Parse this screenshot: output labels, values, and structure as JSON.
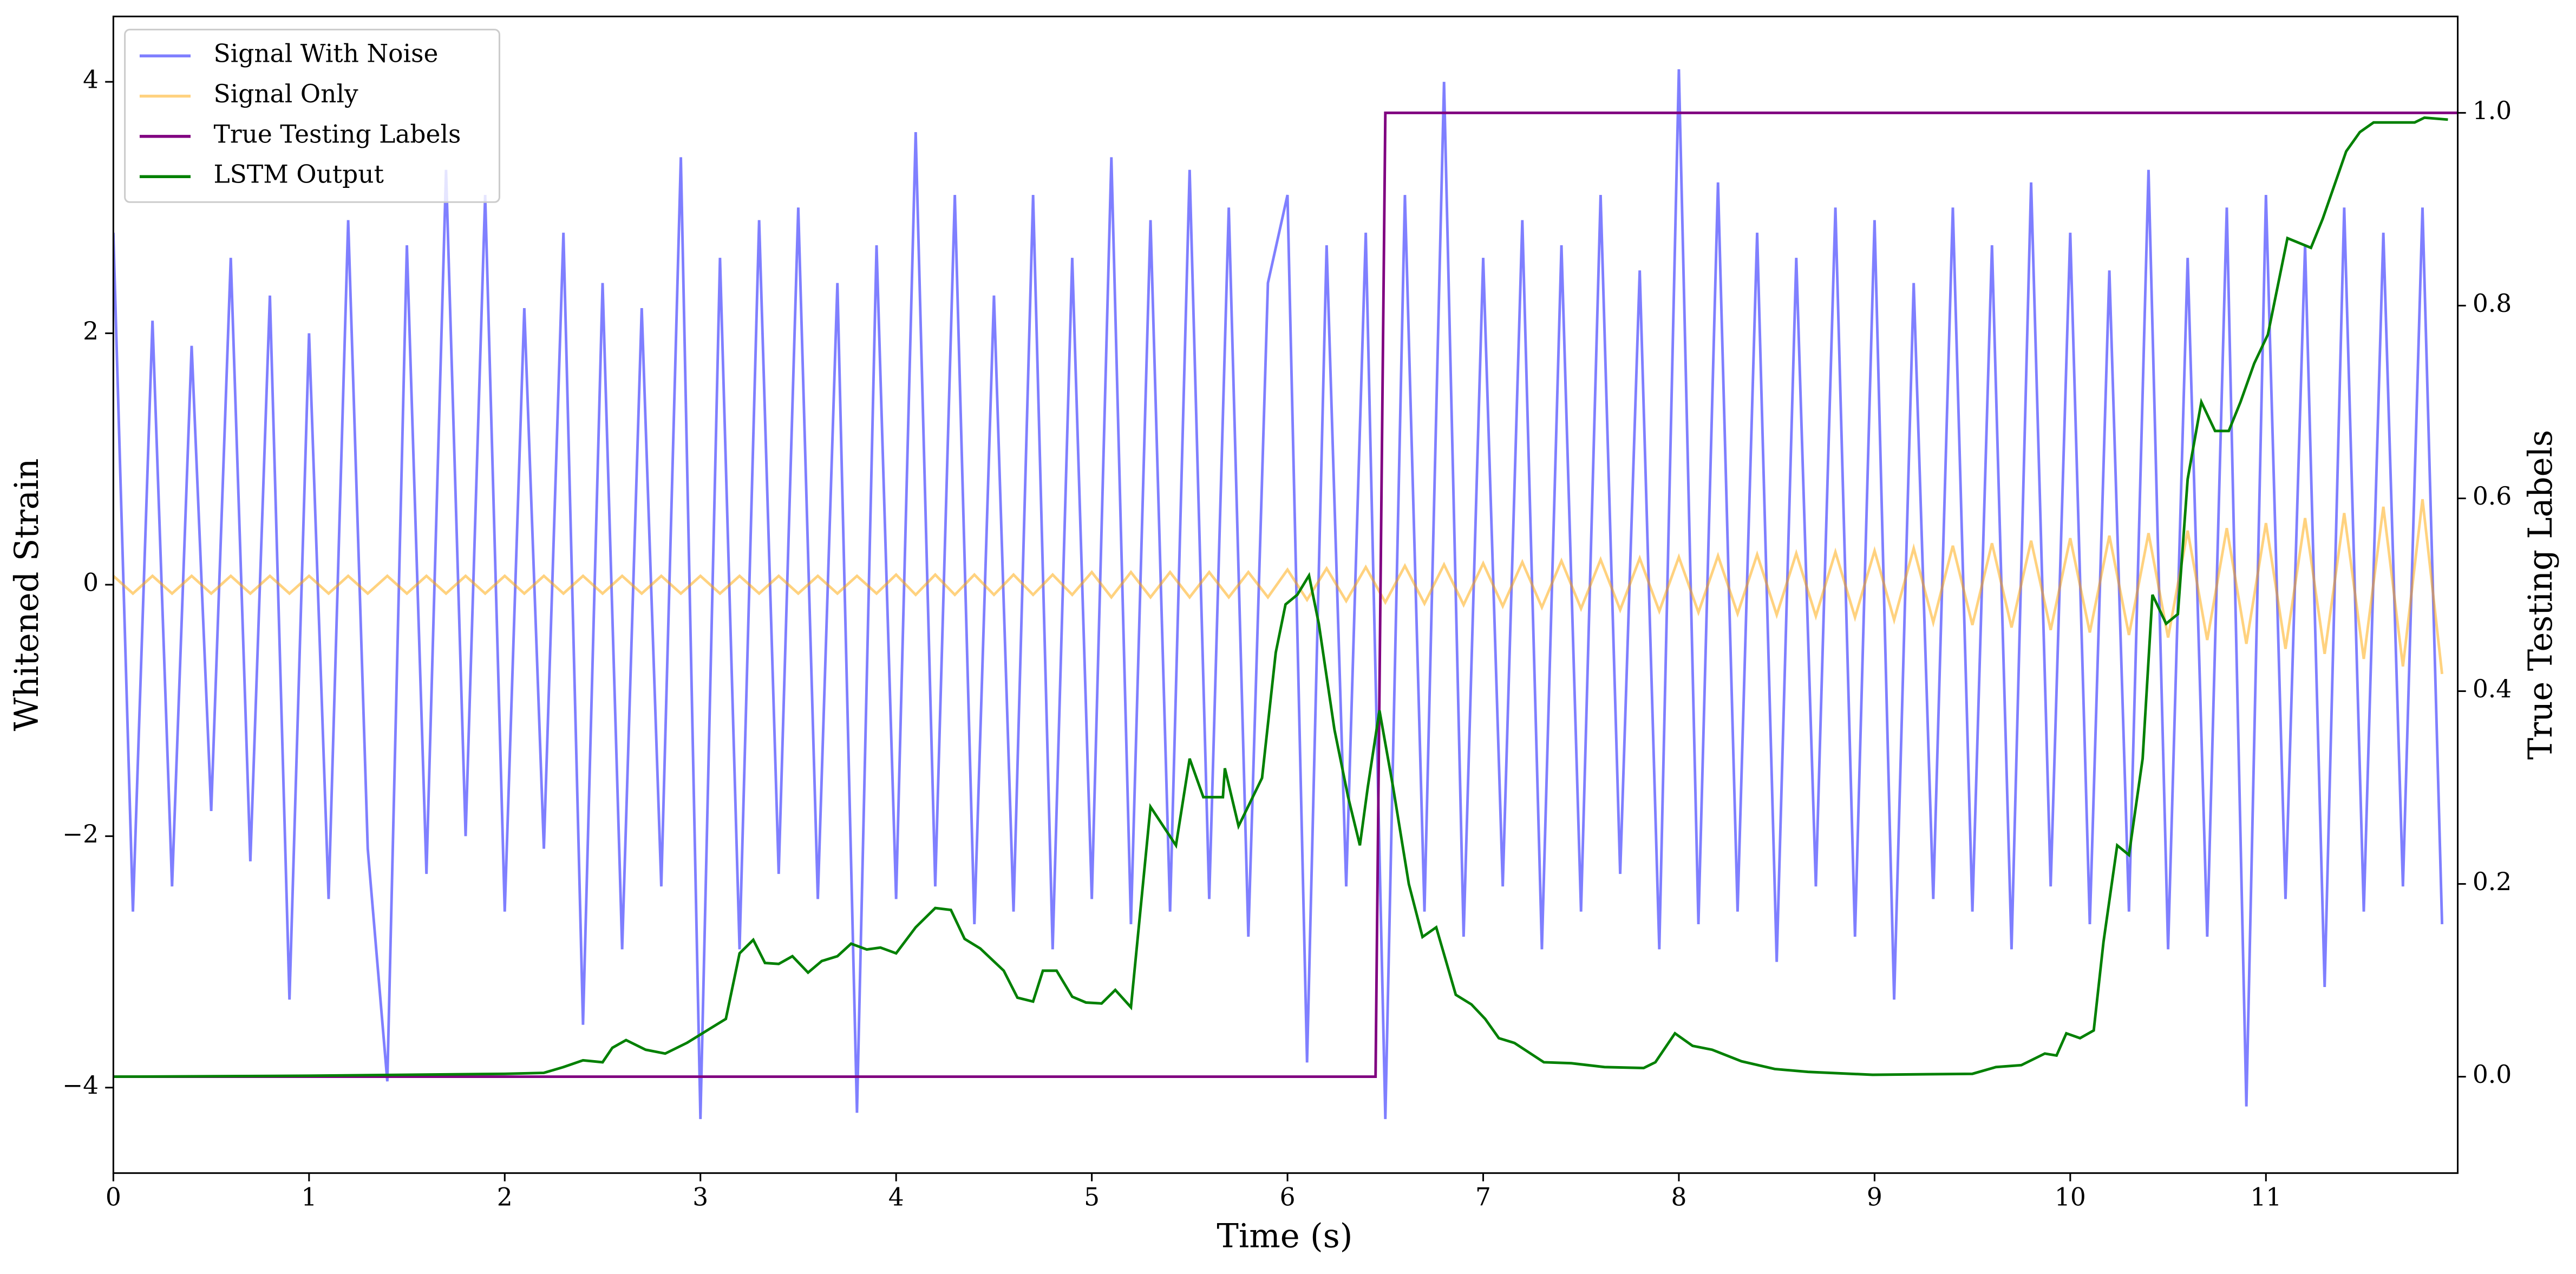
{
  "chart_data": {
    "type": "line",
    "xlabel": "Time (s)",
    "ylabel": "Whitened Strain",
    "y2label": "True Testing Labels",
    "xlim": [
      0,
      11.98
    ],
    "ylim": [
      -4.68,
      4.52
    ],
    "y2lim": [
      -0.1,
      1.1
    ],
    "xticks": [
      0,
      1,
      2,
      3,
      4,
      5,
      6,
      7,
      8,
      9,
      10,
      11
    ],
    "yticks": [
      {
        "value": -4,
        "label": "−4"
      },
      {
        "value": -2,
        "label": "−2"
      },
      0,
      2,
      4
    ],
    "y2ticks": [
      {
        "value": 0,
        "label": "0.0"
      },
      0.2,
      0.4,
      0.6,
      0.8,
      {
        "value": 1,
        "label": "1.0"
      }
    ],
    "legend": "upper left",
    "x": [
      0,
      0.1,
      0.2,
      0.3,
      0.4,
      0.5,
      0.6,
      0.7,
      0.8,
      0.9,
      1,
      1.1,
      1.2,
      1.3,
      1.4,
      1.5,
      1.6,
      1.7,
      1.8,
      1.9,
      2,
      2.1,
      2.2,
      2.3,
      2.4,
      2.5,
      2.6,
      2.7,
      2.8,
      2.9,
      3,
      3.1,
      3.2,
      3.3,
      3.4,
      3.5,
      3.6,
      3.7,
      3.8,
      3.9,
      4,
      4.1,
      4.2,
      4.3,
      4.4,
      4.5,
      4.6,
      4.7,
      4.8,
      4.9,
      5,
      5.1,
      5.2,
      5.3,
      5.4,
      5.5,
      5.6,
      5.7,
      5.8,
      5.9,
      6,
      6.1,
      6.2,
      6.3,
      6.4,
      6.5,
      6.6,
      6.7,
      6.8,
      6.9,
      7,
      7.1,
      7.2,
      7.3,
      7.4,
      7.5,
      7.6,
      7.7,
      7.8,
      7.9,
      8,
      8.1,
      8.2,
      8.3,
      8.4,
      8.5,
      8.6,
      8.7,
      8.8,
      8.9,
      9,
      9.1,
      9.2,
      9.3,
      9.4,
      9.5,
      9.6,
      9.7,
      9.8,
      9.9,
      10,
      10.1,
      10.2,
      10.3,
      10.4,
      10.5,
      10.6,
      10.7,
      10.8,
      10.9,
      11,
      11.1,
      11.2,
      11.3,
      11.4,
      11.5,
      11.6,
      11.7,
      11.8,
      11.9
    ],
    "series": [
      {
        "name": "Signal With Noise",
        "color": "blue",
        "alpha": 0.5,
        "values": [
          2.8,
          -2.6,
          2.1,
          -2.4,
          1.9,
          -1.8,
          2.6,
          -2.2,
          2.3,
          -3.3,
          2.0,
          -2.5,
          2.9,
          -2.1,
          -3.95,
          2.7,
          -2.3,
          3.3,
          -2.0,
          3.1,
          -2.6,
          2.2,
          -2.1,
          2.8,
          -3.5,
          2.4,
          -2.9,
          2.2,
          -2.4,
          3.4,
          -4.25,
          2.6,
          -2.9,
          2.9,
          -2.3,
          3.0,
          -2.5,
          2.4,
          -4.2,
          2.7,
          -2.5,
          3.6,
          -2.4,
          3.1,
          -2.7,
          2.3,
          -2.6,
          3.1,
          -2.9,
          2.6,
          -2.5,
          3.4,
          -2.7,
          2.9,
          -2.6,
          3.3,
          -2.5,
          3.0,
          -2.8,
          2.4,
          3.1,
          -3.8,
          2.7,
          -2.4,
          2.8,
          -4.25,
          3.1,
          -2.6,
          4.0,
          -2.8,
          2.6,
          -2.4,
          2.9,
          -2.9,
          2.7,
          -2.6,
          3.1,
          -2.3,
          2.5,
          -2.9,
          4.1,
          -2.7,
          3.2,
          -2.6,
          2.8,
          -3.0,
          2.6,
          -2.4,
          3.0,
          -2.8,
          2.9,
          -3.3,
          2.4,
          -2.5,
          3.0,
          -2.6,
          2.7,
          -2.9,
          3.2,
          -2.4,
          2.8,
          -2.7,
          2.5,
          -2.6,
          3.3,
          -2.9,
          2.6,
          -2.8,
          3.0,
          -4.15,
          3.1,
          -2.5,
          2.7,
          -3.2,
          3.0,
          -2.6,
          2.8,
          -2.4,
          3.0,
          -2.7
        ]
      },
      {
        "name": "Signal Only",
        "color": "orange",
        "alpha": 0.5,
        "values": [
          0.07,
          -0.07,
          0.07,
          -0.07,
          0.07,
          -0.07,
          0.07,
          -0.07,
          0.07,
          -0.07,
          0.07,
          -0.07,
          0.07,
          -0.07,
          0.07,
          -0.07,
          0.07,
          -0.07,
          0.07,
          -0.07,
          0.07,
          -0.07,
          0.07,
          -0.07,
          0.07,
          -0.07,
          0.07,
          -0.07,
          0.07,
          -0.07,
          0.07,
          -0.07,
          0.07,
          -0.07,
          0.07,
          -0.07,
          0.07,
          -0.07,
          0.07,
          -0.07,
          0.08,
          -0.08,
          0.08,
          -0.08,
          0.08,
          -0.08,
          0.08,
          -0.08,
          0.08,
          -0.08,
          0.1,
          -0.1,
          0.1,
          -0.1,
          0.1,
          -0.1,
          0.1,
          -0.1,
          0.1,
          -0.1,
          0.12,
          -0.12,
          0.13,
          -0.13,
          0.14,
          -0.14,
          0.15,
          -0.15,
          0.16,
          -0.16,
          0.17,
          -0.17,
          0.18,
          -0.18,
          0.19,
          -0.19,
          0.2,
          -0.2,
          0.21,
          -0.21,
          0.22,
          -0.22,
          0.23,
          -0.23,
          0.24,
          -0.24,
          0.25,
          -0.25,
          0.26,
          -0.26,
          0.27,
          -0.28,
          0.29,
          -0.3,
          0.31,
          -0.32,
          0.33,
          -0.34,
          0.35,
          -0.36,
          0.37,
          -0.38,
          0.39,
          -0.4,
          0.41,
          -0.42,
          0.43,
          -0.44,
          0.45,
          -0.47,
          0.49,
          -0.51,
          0.53,
          -0.55,
          0.57,
          -0.59,
          0.62,
          -0.65,
          0.68,
          -0.71
        ]
      },
      {
        "name": "True Testing Labels",
        "color": "purple",
        "axis": "y2",
        "x": [
          0,
          6.45,
          6.5,
          11.98
        ],
        "values": [
          0,
          0,
          1,
          1
        ]
      },
      {
        "name": "LSTM Output",
        "color": "green",
        "axis": "y2",
        "x": [
          0,
          1,
          2,
          2.2,
          2.3,
          2.4,
          2.5,
          2.55,
          2.62,
          2.72,
          2.82,
          2.93,
          3.05,
          3.13,
          3.2,
          3.27,
          3.33,
          3.4,
          3.47,
          3.55,
          3.62,
          3.7,
          3.77,
          3.85,
          3.92,
          4,
          4.1,
          4.2,
          4.28,
          4.35,
          4.43,
          4.55,
          4.62,
          4.7,
          4.75,
          4.82,
          4.9,
          4.97,
          5.05,
          5.12,
          5.2,
          5.3,
          5.43,
          5.5,
          5.57,
          5.67,
          5.68,
          5.75,
          5.87,
          5.94,
          5.99,
          6.05,
          6.11,
          6.16,
          6.24,
          6.31,
          6.37,
          6.41,
          6.47,
          6.54,
          6.62,
          6.69,
          6.76,
          6.86,
          6.94,
          7.01,
          7.08,
          7.16,
          7.31,
          7.45,
          7.62,
          7.82,
          7.88,
          7.98,
          8.07,
          8.17,
          8.32,
          8.49,
          8.66,
          8.99,
          9.5,
          9.62,
          9.75,
          9.87,
          9.93,
          9.98,
          10.05,
          10.12,
          10.17,
          10.24,
          10.3,
          10.37,
          10.42,
          10.49,
          10.55,
          10.6,
          10.67,
          10.74,
          10.81,
          10.87,
          10.94,
          11.01,
          11.11,
          11.23,
          11.29,
          11.41,
          11.48,
          11.55,
          11.76,
          11.81,
          11.93
        ],
        "values": [
          0,
          0.001,
          0.003,
          0.004,
          0.01,
          0.017,
          0.015,
          0.03,
          0.038,
          0.028,
          0.024,
          0.035,
          0.05,
          0.06,
          0.128,
          0.142,
          0.118,
          0.117,
          0.125,
          0.108,
          0.12,
          0.125,
          0.138,
          0.132,
          0.134,
          0.128,
          0.155,
          0.175,
          0.173,
          0.143,
          0.133,
          0.11,
          0.082,
          0.078,
          0.11,
          0.11,
          0.083,
          0.077,
          0.076,
          0.09,
          0.072,
          0.28,
          0.24,
          0.33,
          0.29,
          0.29,
          0.32,
          0.26,
          0.31,
          0.44,
          0.49,
          0.5,
          0.52,
          0.47,
          0.36,
          0.29,
          0.24,
          0.3,
          0.38,
          0.3,
          0.2,
          0.145,
          0.155,
          0.085,
          0.075,
          0.06,
          0.04,
          0.035,
          0.015,
          0.014,
          0.01,
          0.009,
          0.015,
          0.045,
          0.032,
          0.028,
          0.016,
          0.008,
          0.005,
          0.002,
          0.003,
          0.01,
          0.012,
          0.024,
          0.022,
          0.045,
          0.04,
          0.048,
          0.14,
          0.24,
          0.23,
          0.33,
          0.5,
          0.47,
          0.48,
          0.62,
          0.7,
          0.67,
          0.67,
          0.7,
          0.74,
          0.77,
          0.87,
          0.86,
          0.89,
          0.96,
          0.98,
          0.99,
          0.99,
          0.995,
          0.993
        ]
      }
    ]
  }
}
